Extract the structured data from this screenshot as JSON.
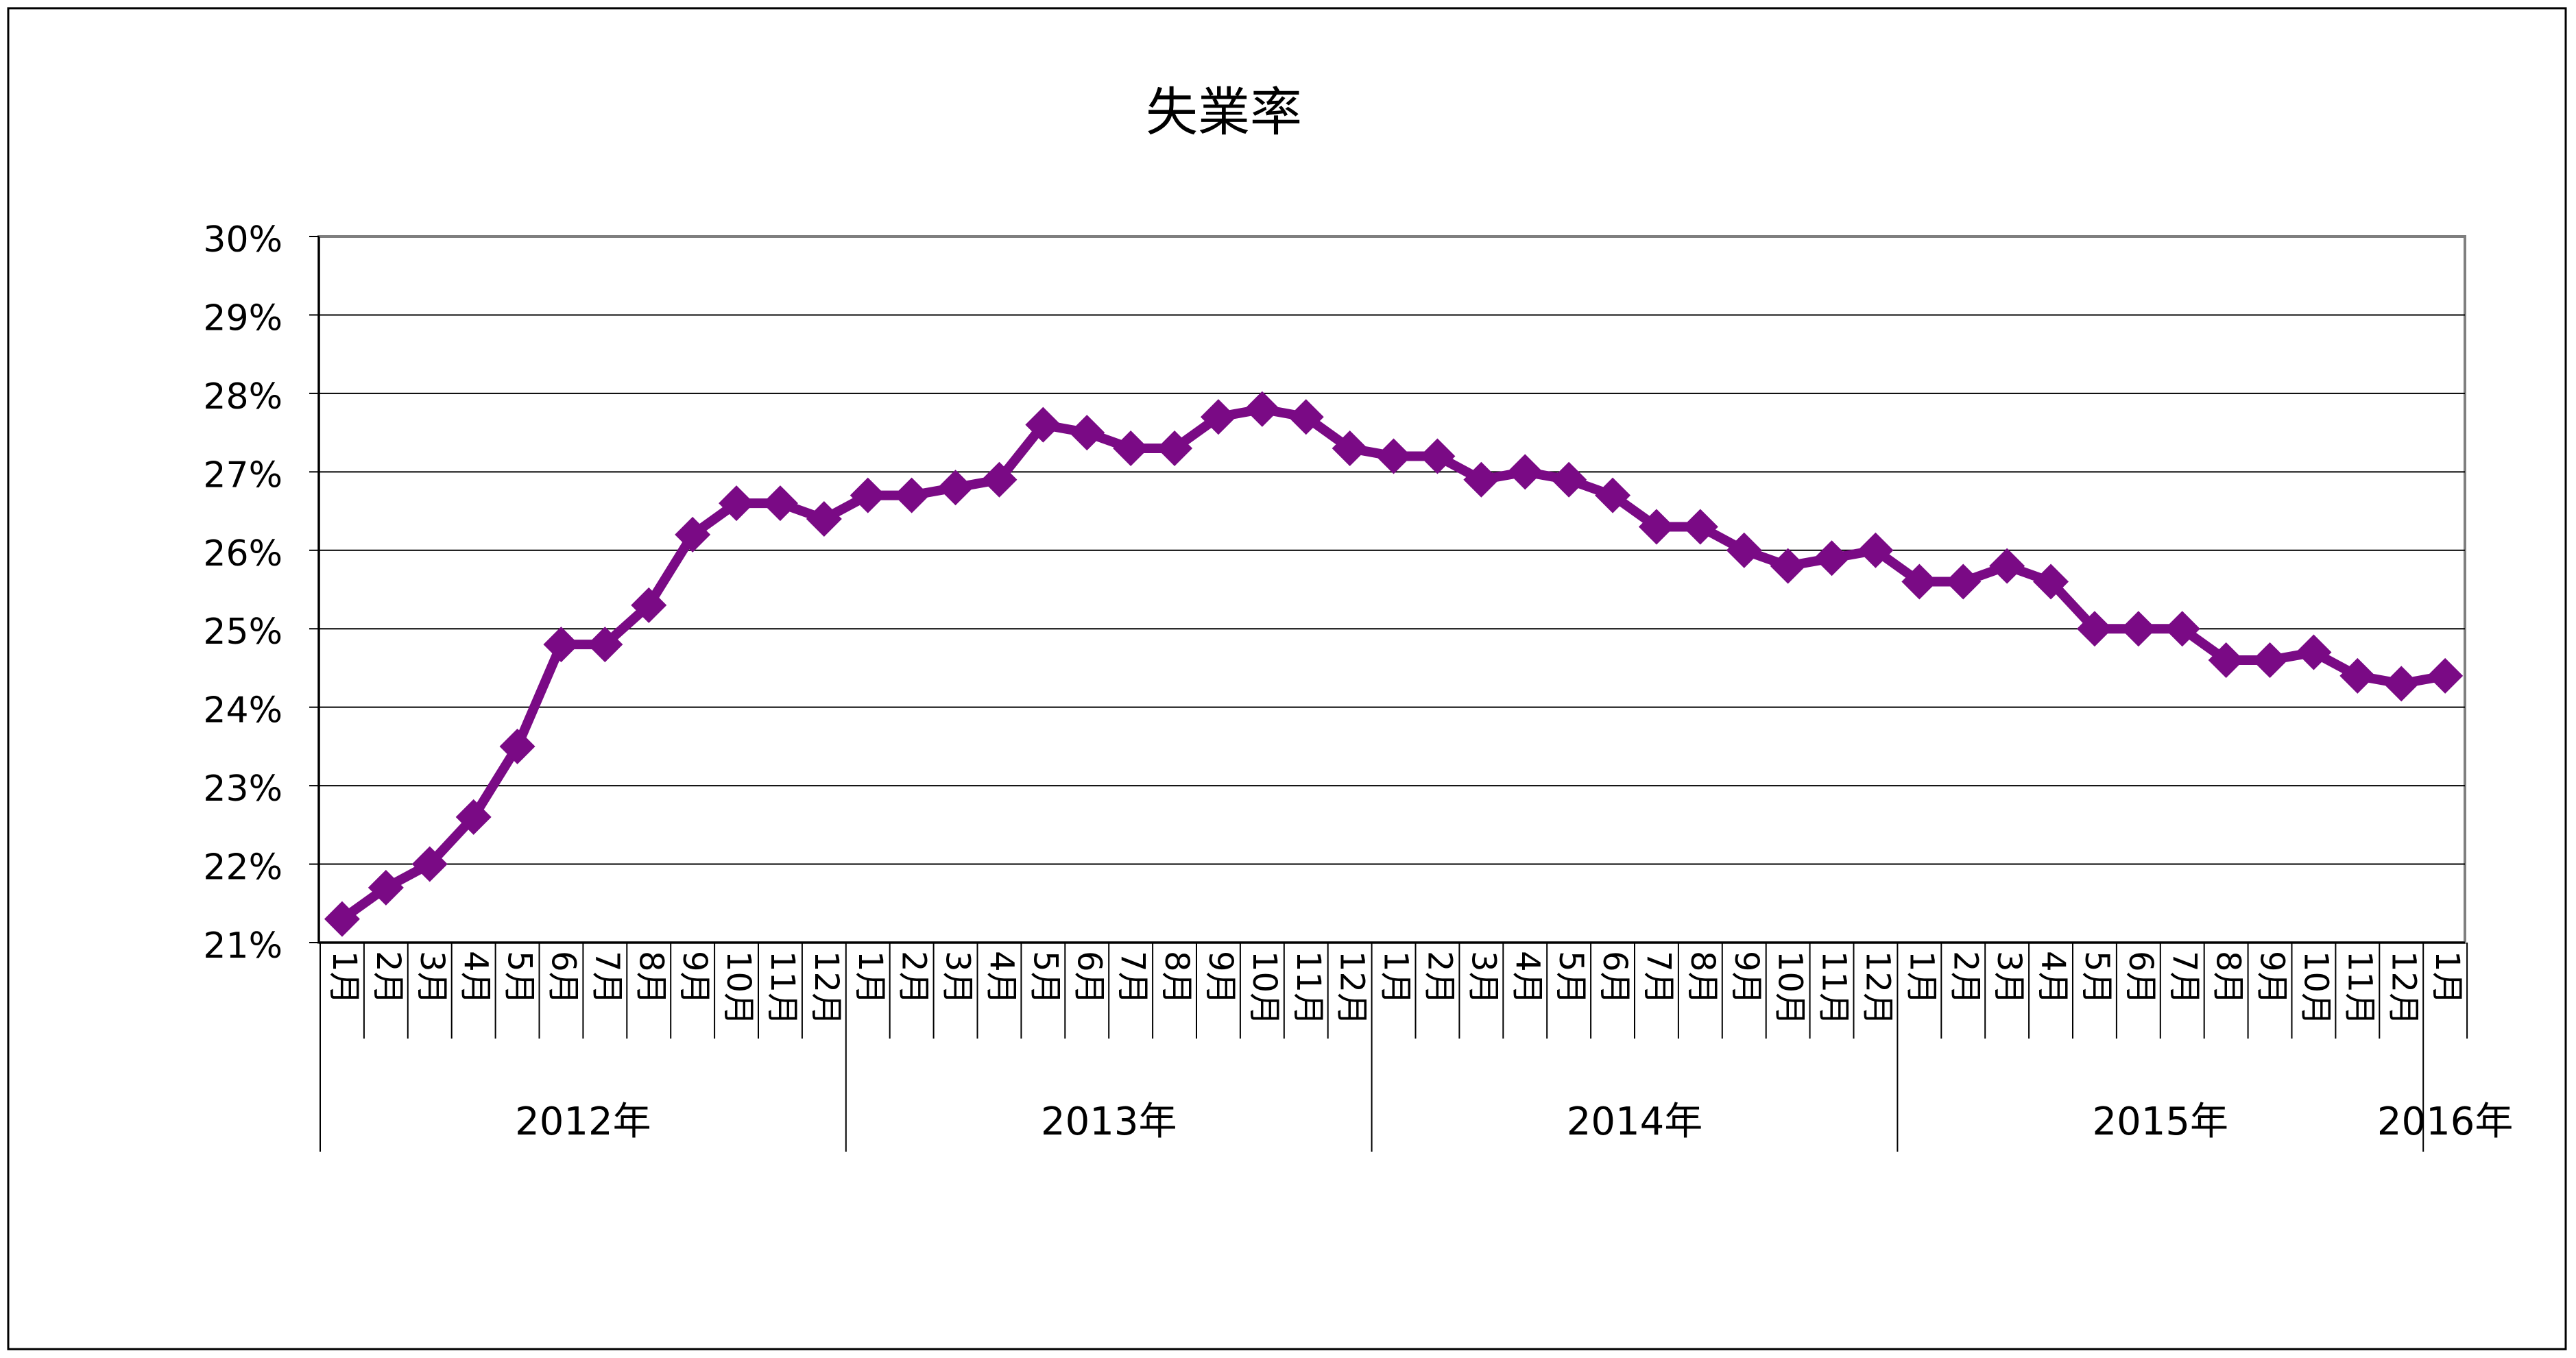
{
  "chart_data": {
    "type": "line",
    "title": "失業率",
    "xlabel": "",
    "ylabel": "",
    "ylim": [
      21,
      30
    ],
    "y_ticks": [
      "30%",
      "29%",
      "28%",
      "27%",
      "26%",
      "25%",
      "24%",
      "23%",
      "22%",
      "21%"
    ],
    "grid": true,
    "legend": "none",
    "line_color": "#7a0a85",
    "marker": "diamond",
    "x": [
      "1月",
      "2月",
      "3月",
      "4月",
      "5月",
      "6月",
      "7月",
      "8月",
      "9月",
      "10月",
      "11月",
      "12月",
      "1月",
      "2月",
      "3月",
      "4月",
      "5月",
      "6月",
      "7月",
      "8月",
      "9月",
      "10月",
      "11月",
      "12月",
      "1月",
      "2月",
      "3月",
      "4月",
      "5月",
      "6月",
      "7月",
      "8月",
      "9月",
      "10月",
      "11月",
      "12月",
      "1月",
      "2月",
      "3月",
      "4月",
      "5月",
      "6月",
      "7月",
      "8月",
      "9月",
      "10月",
      "11月",
      "12月",
      "1月"
    ],
    "year_groups": [
      {
        "label": "2012年",
        "count": 12
      },
      {
        "label": "2013年",
        "count": 12
      },
      {
        "label": "2014年",
        "count": 12
      },
      {
        "label": "2015年",
        "count": 12
      },
      {
        "label": "2016年",
        "count": 1
      }
    ],
    "series": [
      {
        "values": [
          21.3,
          21.7,
          22.0,
          22.6,
          23.5,
          24.8,
          24.8,
          25.3,
          26.2,
          26.6,
          26.6,
          26.4,
          26.7,
          26.7,
          26.8,
          26.9,
          27.6,
          27.5,
          27.3,
          27.3,
          27.7,
          27.8,
          27.7,
          27.3,
          27.2,
          27.2,
          26.9,
          27.0,
          26.9,
          26.7,
          26.3,
          26.3,
          26.0,
          25.8,
          25.9,
          26.0,
          25.6,
          25.6,
          25.8,
          25.6,
          25.0,
          25.0,
          25.0,
          24.6,
          24.6,
          24.7,
          24.4,
          24.3,
          24.4
        ]
      }
    ]
  }
}
